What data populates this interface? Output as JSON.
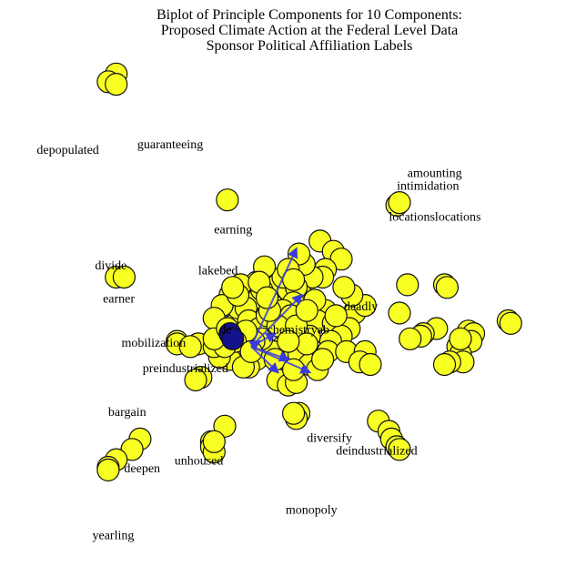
{
  "chart_data": {
    "type": "scatter",
    "title": [
      "Biplot of Principle Components for 10 Components:",
      "Proposed Climate Action at the Federal Level Data",
      "Sponsor Political Affiliation Labels"
    ],
    "xlim": [
      -1,
      1
    ],
    "ylim": [
      -1,
      1
    ],
    "grid": false,
    "colors": {
      "point_fill": "#f8ff22",
      "point_stroke": "#111111",
      "highlight_fill": "#12128a",
      "vector": "#3a3ae0"
    },
    "origin": [
      -0.12,
      -0.1
    ],
    "highlight_points": [
      [
        -0.2,
        -0.05
      ],
      [
        -0.19,
        -0.07
      ]
    ],
    "vectors": [
      [
        0.17,
        0.38
      ],
      [
        0.19,
        0.2
      ],
      [
        0.14,
        -0.05
      ],
      [
        0.22,
        -0.1
      ],
      [
        0.1,
        -0.1
      ],
      [
        0.03,
        0.02
      ],
      [
        0.09,
        0.05
      ]
    ],
    "points": [
      [
        -0.63,
        0.96
      ],
      [
        -0.66,
        0.93
      ],
      [
        -0.63,
        0.92
      ],
      [
        -0.21,
        0.47
      ],
      [
        0.43,
        0.45
      ],
      [
        0.44,
        0.46
      ],
      [
        -0.63,
        0.17
      ],
      [
        -0.6,
        0.17
      ],
      [
        0.61,
        0.14
      ],
      [
        0.62,
        0.13
      ],
      [
        0.47,
        0.14
      ],
      [
        0.44,
        0.03
      ],
      [
        0.85,
        0.0
      ],
      [
        0.86,
        -0.01
      ],
      [
        0.58,
        -0.03
      ],
      [
        0.53,
        -0.05
      ],
      [
        0.7,
        -0.04
      ],
      [
        0.72,
        -0.05
      ],
      [
        0.71,
        -0.08
      ],
      [
        0.66,
        -0.1
      ],
      [
        0.67,
        -0.13
      ],
      [
        0.68,
        -0.16
      ],
      [
        0.63,
        -0.16
      ],
      [
        0.61,
        -0.17
      ],
      [
        0.67,
        -0.07
      ],
      [
        0.52,
        -0.06
      ],
      [
        0.48,
        -0.07
      ],
      [
        -0.4,
        -0.08
      ],
      [
        -0.4,
        -0.09
      ],
      [
        -0.32,
        -0.09
      ],
      [
        -0.35,
        -0.1
      ],
      [
        -0.31,
        -0.22
      ],
      [
        -0.33,
        -0.23
      ],
      [
        0.06,
        -0.36
      ],
      [
        0.05,
        -0.38
      ],
      [
        0.04,
        -0.36
      ],
      [
        0.36,
        -0.39
      ],
      [
        0.4,
        -0.43
      ],
      [
        0.41,
        -0.46
      ],
      [
        0.43,
        -0.49
      ],
      [
        0.44,
        -0.5
      ],
      [
        -0.22,
        -0.41
      ],
      [
        -0.27,
        -0.47
      ],
      [
        -0.27,
        -0.49
      ],
      [
        -0.26,
        -0.51
      ],
      [
        -0.26,
        -0.47
      ],
      [
        -0.54,
        -0.46
      ],
      [
        -0.57,
        -0.5
      ],
      [
        -0.63,
        -0.54
      ],
      [
        -0.66,
        -0.57
      ],
      [
        -0.66,
        -0.58
      ],
      [
        0.14,
        0.31
      ],
      [
        0.19,
        0.27
      ],
      [
        0.22,
        0.24
      ],
      [
        0.16,
        0.2
      ],
      [
        0.15,
        0.17
      ],
      [
        0.11,
        0.17
      ],
      [
        0.07,
        0.1
      ],
      [
        -0.1,
        0.15
      ],
      [
        -0.05,
        0.14
      ],
      [
        -0.16,
        0.14
      ],
      [
        -0.09,
        0.09
      ],
      [
        -0.02,
        0.14
      ],
      [
        0.02,
        0.12
      ],
      [
        0.05,
        0.13
      ],
      [
        0.04,
        0.07
      ],
      [
        0.29,
        0.06
      ],
      [
        0.27,
        0.03
      ],
      [
        0.16,
        0.04
      ],
      [
        0.11,
        0.01
      ],
      [
        0.08,
        0.0
      ],
      [
        0.13,
        0.0
      ],
      [
        0.19,
        -0.01
      ],
      [
        0.25,
        -0.03
      ],
      [
        0.22,
        -0.06
      ],
      [
        0.18,
        -0.08
      ],
      [
        0.1,
        -0.06
      ],
      [
        0.03,
        -0.05
      ],
      [
        0.0,
        -0.1
      ],
      [
        -0.04,
        -0.12
      ],
      [
        0.02,
        -0.16
      ],
      [
        0.06,
        -0.13
      ],
      [
        0.1,
        -0.17
      ],
      [
        0.13,
        -0.19
      ],
      [
        0.0,
        -0.21
      ],
      [
        -0.02,
        -0.23
      ],
      [
        0.02,
        -0.25
      ],
      [
        0.05,
        -0.24
      ],
      [
        -0.1,
        -0.15
      ],
      [
        -0.13,
        -0.18
      ],
      [
        -0.15,
        -0.11
      ],
      [
        -0.17,
        -0.13
      ],
      [
        -0.2,
        -0.15
      ],
      [
        -0.24,
        -0.14
      ],
      [
        -0.26,
        -0.1
      ],
      [
        -0.23,
        -0.05
      ],
      [
        -0.19,
        -0.02
      ],
      [
        -0.17,
        0.05
      ],
      [
        -0.14,
        0.05
      ],
      [
        -0.2,
        0.1
      ],
      [
        -0.23,
        0.06
      ],
      [
        -0.26,
        0.01
      ],
      [
        -0.13,
        0.0
      ],
      [
        -0.09,
        -0.03
      ],
      [
        -0.06,
        0.02
      ],
      [
        -0.04,
        0.06
      ],
      [
        0.0,
        0.04
      ],
      [
        0.03,
        0.02
      ],
      [
        -0.02,
        -0.02
      ],
      [
        -0.08,
        -0.07
      ],
      [
        -0.11,
        -0.08
      ],
      [
        -0.14,
        -0.04
      ],
      [
        -0.08,
        0.12
      ],
      [
        0.0,
        0.17
      ],
      [
        0.08,
        0.22
      ],
      [
        0.06,
        0.26
      ],
      [
        0.02,
        0.2
      ],
      [
        -0.05,
        0.04
      ],
      [
        0.05,
        -0.02
      ],
      [
        0.09,
        -0.09
      ],
      [
        -0.03,
        -0.15
      ],
      [
        -0.18,
        -0.08
      ],
      [
        -0.22,
        -0.1
      ],
      [
        -0.26,
        -0.07
      ],
      [
        -0.17,
        0.1
      ],
      [
        0.17,
        -0.12
      ],
      [
        0.24,
        -0.12
      ],
      [
        0.31,
        -0.12
      ],
      [
        0.29,
        -0.16
      ],
      [
        0.33,
        -0.17
      ],
      [
        0.31,
        0.06
      ],
      [
        0.26,
        0.1
      ],
      [
        0.23,
        0.13
      ],
      [
        -0.19,
        0.13
      ],
      [
        -0.07,
        0.21
      ],
      [
        -0.15,
        -0.18
      ],
      [
        0.04,
        -0.19
      ],
      [
        -0.09,
        0.15
      ],
      [
        0.12,
        0.08
      ],
      [
        0.02,
        -0.08
      ],
      [
        -0.12,
        -0.12
      ],
      [
        0.15,
        -0.15
      ],
      [
        0.2,
        0.02
      ],
      [
        0.04,
        0.16
      ],
      [
        -0.06,
        0.09
      ],
      [
        -0.21,
        -0.03
      ],
      [
        0.09,
        0.04
      ]
    ],
    "vector_labels": [
      {
        "text": "chemistryab",
        "x": -0.06,
        "y": -0.05
      },
      {
        "text": "deadly",
        "x": 0.23,
        "y": 0.04
      },
      {
        "text": "lakebed",
        "x": -0.32,
        "y": 0.18
      },
      {
        "text": "mobilization",
        "x": -0.61,
        "y": -0.1
      },
      {
        "text": "preindustrialized",
        "x": -0.53,
        "y": -0.2
      },
      {
        "text": "de",
        "x": -0.24,
        "y": -0.05
      }
    ],
    "word_labels": [
      {
        "text": "amounting",
        "x": 0.47,
        "y": 0.56
      },
      {
        "text": "intimidation",
        "x": 0.43,
        "y": 0.51
      },
      {
        "text": "locationslocations",
        "x": 0.4,
        "y": 0.39
      },
      {
        "text": "depopulated",
        "x": -0.93,
        "y": 0.65
      },
      {
        "text": "guaranteeing",
        "x": -0.55,
        "y": 0.67
      },
      {
        "text": "earning",
        "x": -0.26,
        "y": 0.34
      },
      {
        "text": "divide",
        "x": -0.71,
        "y": 0.2
      },
      {
        "text": "earner",
        "x": -0.68,
        "y": 0.07
      },
      {
        "text": "bargain",
        "x": -0.66,
        "y": -0.37
      },
      {
        "text": "diversify",
        "x": 0.09,
        "y": -0.47
      },
      {
        "text": "deindustrialized",
        "x": 0.2,
        "y": -0.52
      },
      {
        "text": "unhoused",
        "x": -0.41,
        "y": -0.56
      },
      {
        "text": "deepen",
        "x": -0.6,
        "y": -0.59
      },
      {
        "text": "monopoly",
        "x": 0.01,
        "y": -0.75
      },
      {
        "text": "yearling",
        "x": -0.72,
        "y": -0.85
      }
    ]
  }
}
